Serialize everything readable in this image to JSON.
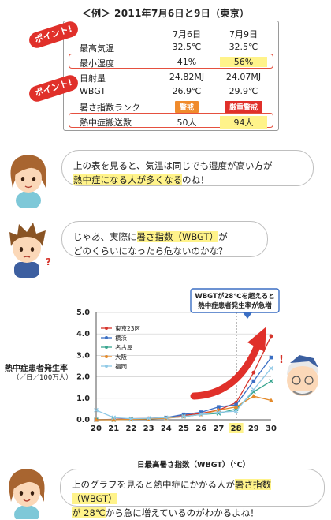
{
  "table": {
    "title": "＜例＞ 2011年7月6日と9日（東京）",
    "col1": "7月6日",
    "col2": "7月9日",
    "rows": [
      {
        "label": "最高気温",
        "v1": "32.5℃",
        "v2": "32.5℃"
      },
      {
        "label": "最小湿度",
        "v1": "41%",
        "v2": "56%"
      },
      {
        "label": "日射量",
        "v1": "24.82MJ",
        "v2": "24.07MJ"
      },
      {
        "label": "WBGT",
        "v1": "26.9℃",
        "v2": "29.9℃"
      },
      {
        "label": "暑さ指数ランク",
        "v1": "警戒",
        "v2": "厳重警戒"
      },
      {
        "label": "熱中症搬送数",
        "v1": "50人",
        "v2": "94人"
      }
    ],
    "point_label": "ポイント!",
    "colors": {
      "highlight_border": "#e5503f",
      "rank_warn": "#f08b2c",
      "rank_severe": "#e0302a",
      "highlight_fill": "#fff38a"
    }
  },
  "dialog": {
    "bubble1": {
      "pre": "上の表を見ると、気温は同じでも湿度が高い方が",
      "mark": "熱中症になる人が多くなる",
      "post": "のね！"
    },
    "bubble2": {
      "pre": "じゃあ、実際に",
      "mark": "暑さ指数（WBGT）",
      "post": "が",
      "line2": "どのくらいになったら危ないのかな？"
    },
    "bubble3": {
      "pre": "上のグラフを見ると熱中症にかかる人が",
      "mark1": "暑さ指数（WBGT）",
      "mark2": "が 28℃",
      "post": "から急に増えているのがわかるよね！"
    }
  },
  "chart_data": {
    "type": "line",
    "ylabel": "熱中症患者発生率",
    "yunit": "（／日／100万人）",
    "xlabel": "日最高暑さ指数（WBGT）（℃）",
    "ylim": [
      0,
      5
    ],
    "yticks": [
      "0.0",
      "1.0",
      "2.0",
      "3.0",
      "4.0",
      "5.0"
    ],
    "x": [
      20,
      21,
      22,
      23,
      24,
      25,
      26,
      27,
      28,
      29,
      30
    ],
    "annotation": "WBGTが28℃を超えると\n熱中症患者発生率が急増",
    "series": [
      {
        "name": "東京23区",
        "color": "#d6342b",
        "marker": "circle",
        "values": [
          0.0,
          0.02,
          0.05,
          0.07,
          0.1,
          0.2,
          0.3,
          0.45,
          0.8,
          2.2,
          3.9
        ]
      },
      {
        "name": "横浜",
        "color": "#3b6fc4",
        "marker": "square",
        "values": [
          0.0,
          0.01,
          0.03,
          0.06,
          0.1,
          0.25,
          0.35,
          0.6,
          0.7,
          1.8,
          2.9
        ]
      },
      {
        "name": "名古屋",
        "color": "#3aa690",
        "marker": "x",
        "values": [
          0.0,
          0.0,
          0.02,
          0.04,
          0.08,
          0.15,
          0.25,
          0.3,
          0.5,
          1.3,
          1.8
        ]
      },
      {
        "name": "大阪",
        "color": "#e48a2a",
        "marker": "triangle",
        "values": [
          0.0,
          0.0,
          0.02,
          0.04,
          0.07,
          0.15,
          0.25,
          0.45,
          0.6,
          1.1,
          0.9
        ]
      },
      {
        "name": "福岡",
        "color": "#8fc9e6",
        "marker": "x",
        "values": [
          0.45,
          0.1,
          0.05,
          0.07,
          0.1,
          0.15,
          0.25,
          0.35,
          0.4,
          1.4,
          2.4
        ]
      }
    ]
  }
}
